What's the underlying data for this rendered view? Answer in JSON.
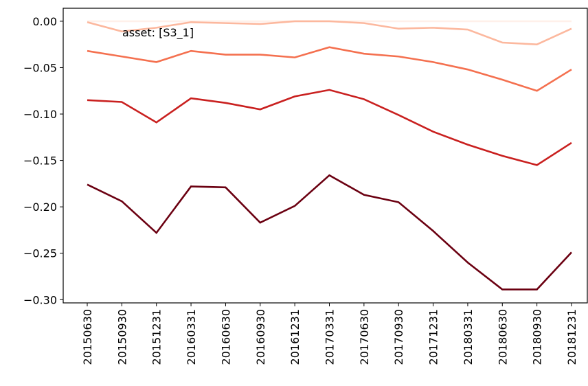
{
  "chart_data": {
    "type": "line",
    "annotation": "asset: [S3_1]",
    "categories": [
      "20150630",
      "20150930",
      "20151231",
      "20160331",
      "20160630",
      "20160930",
      "20161231",
      "20170331",
      "20170630",
      "20170930",
      "20171231",
      "20180331",
      "20180630",
      "20180930",
      "20181231"
    ],
    "series": [
      {
        "color": "#fff0ea",
        "values": [
          0,
          0,
          0,
          0,
          0,
          0,
          0,
          0,
          0,
          0,
          0,
          0,
          0,
          0,
          0
        ]
      },
      {
        "color": "#fcb89e",
        "values": [
          -0.001,
          -0.011,
          -0.007,
          -0.001,
          -0.002,
          -0.003,
          0.0,
          0.0,
          -0.002,
          -0.008,
          -0.007,
          -0.009,
          -0.023,
          -0.025,
          -0.008
        ]
      },
      {
        "color": "#f4704f",
        "values": [
          -0.032,
          -0.038,
          -0.044,
          -0.032,
          -0.036,
          -0.036,
          -0.039,
          -0.028,
          -0.035,
          -0.038,
          -0.044,
          -0.052,
          -0.063,
          -0.075,
          -0.052
        ]
      },
      {
        "color": "#c9201f",
        "values": [
          -0.085,
          -0.087,
          -0.109,
          -0.083,
          -0.088,
          -0.095,
          -0.081,
          -0.074,
          -0.084,
          -0.101,
          -0.119,
          -0.133,
          -0.145,
          -0.155,
          -0.131
        ]
      },
      {
        "color": "#6b0011",
        "values": [
          -0.176,
          -0.194,
          -0.228,
          -0.178,
          -0.179,
          -0.217,
          -0.199,
          -0.166,
          -0.187,
          -0.195,
          -0.226,
          -0.26,
          -0.289,
          -0.289,
          -0.249
        ]
      }
    ],
    "ylim": [
      -0.3035,
      0.014
    ],
    "yticks": [
      {
        "value": 0,
        "label": "0.00"
      },
      {
        "value": -0.05,
        "label": "−0.05"
      },
      {
        "value": -0.1,
        "label": "−0.10"
      },
      {
        "value": -0.15,
        "label": "−0.15"
      },
      {
        "value": -0.2,
        "label": "−0.20"
      },
      {
        "value": -0.25,
        "label": "−0.25"
      },
      {
        "value": -0.3,
        "label": "−0.30"
      }
    ]
  }
}
